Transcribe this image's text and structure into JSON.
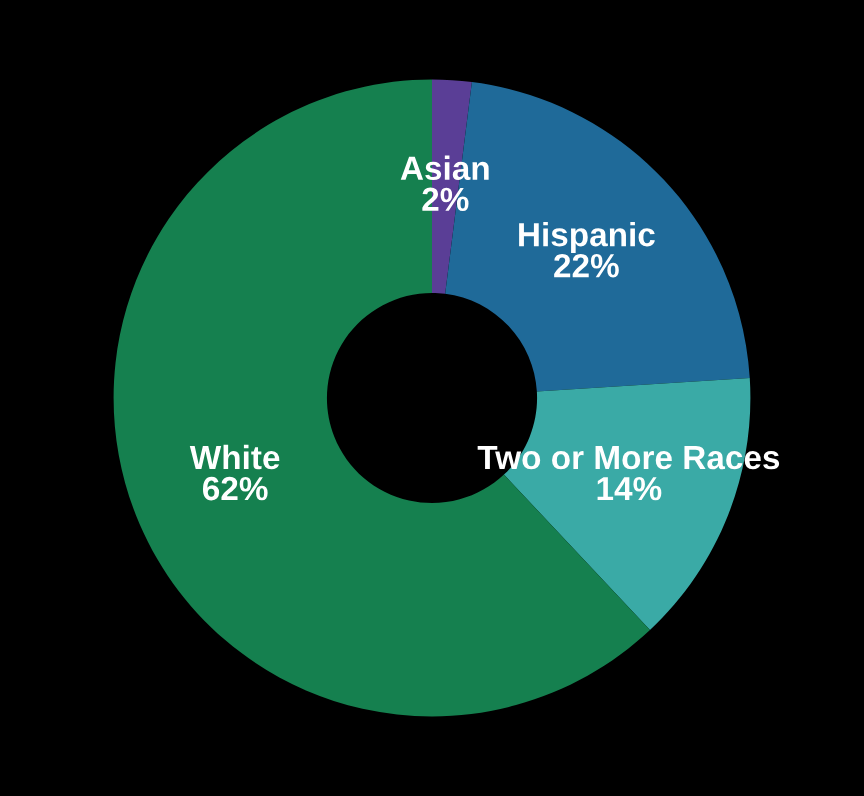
{
  "chart_data": {
    "type": "donut",
    "categories": [
      "Asian",
      "Hispanic",
      "Two or More Races",
      "White"
    ],
    "values": [
      2,
      22,
      14,
      62
    ],
    "colors": [
      "#5a3e96",
      "#1f6a99",
      "#3aaaa6",
      "#15804f"
    ],
    "value_labels": [
      "2%",
      "22%",
      "14%",
      "62%"
    ],
    "legend": false
  }
}
